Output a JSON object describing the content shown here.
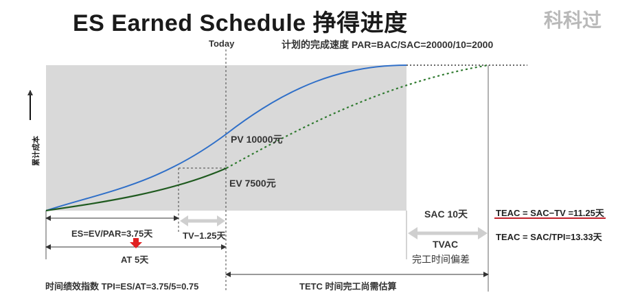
{
  "title": "ES  Earned Schedule  挣得进度",
  "watermark": "科科过",
  "today_label": "Today",
  "planned_rate": "计划的完成速度  PAR=BAC/SAC=20000/10=2000",
  "y_axis_label": "累计成本",
  "pv_label": "PV 10000元",
  "ev_label": "EV 7500元",
  "sac_label": "SAC 10天",
  "teac_sac_tv": "TEAC = SAC−TV =11.25天",
  "teac_sac_tpi": "TEAC = SAC/TPI=13.33天",
  "es_label": "ES=EV/PAR=3.75天",
  "tv_label": "TV−1.25天",
  "tvac_label": "TVAC",
  "tvac_sub": "完工时间偏差",
  "at_label": "AT 5天",
  "tpi_label": "时间绩效指数 TPI=ES/AT=3.75/5=0.75",
  "tetc_label": "TETC 时间完工尚需估算",
  "colors": {
    "pv_line": "#2f6fc8",
    "ev_line": "#1f5a1f",
    "plot_bg": "#d9d9d9",
    "teac_underline": "#c0202a",
    "at_arrow": "#e02020",
    "grey_arrow": "#cfcfcf"
  }
}
